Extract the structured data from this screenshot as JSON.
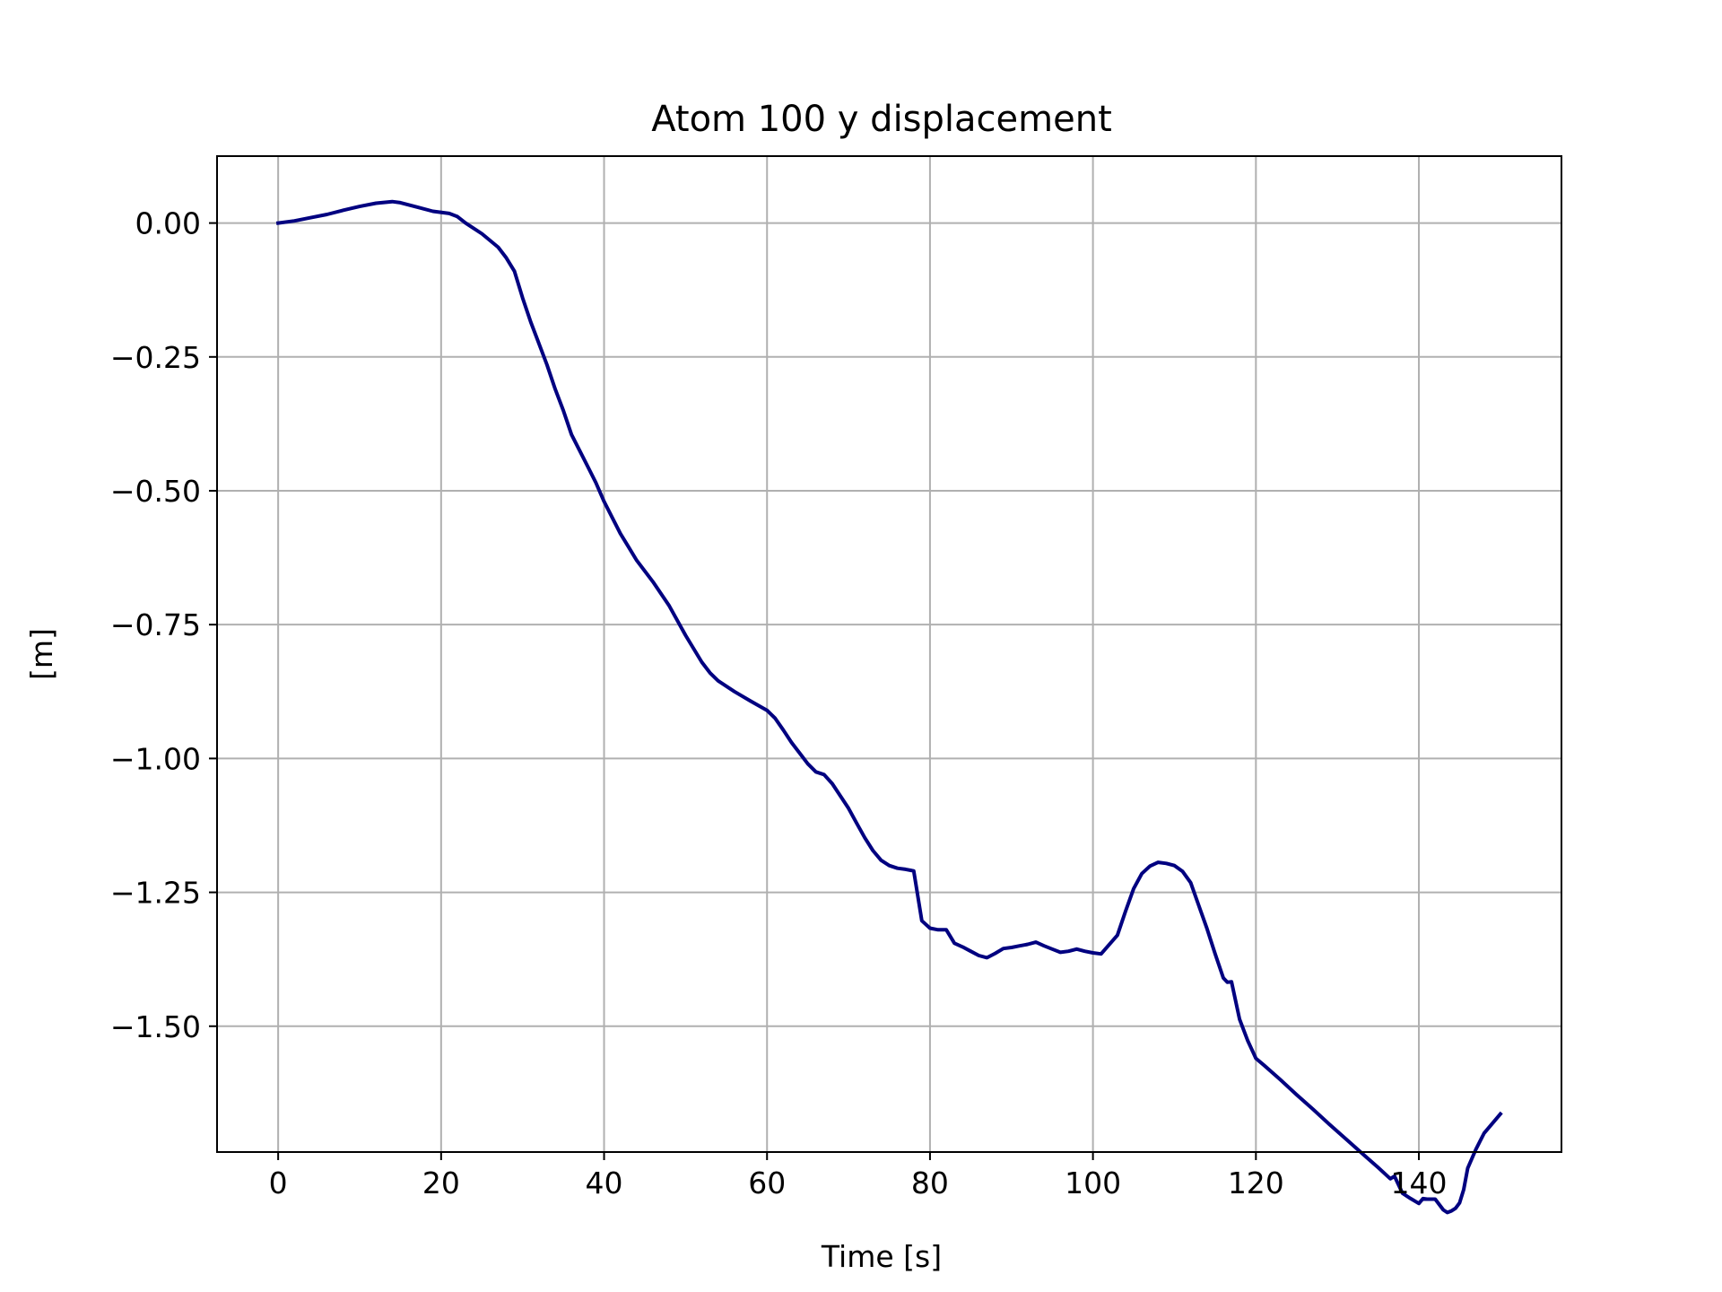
{
  "chart_data": {
    "type": "line",
    "title": "Atom 100 y displacement",
    "xlabel": "Time [s]",
    "ylabel": "[m]",
    "xlim": [
      -7.5,
      157.5
    ],
    "ylim": [
      -1.735,
      0.125
    ],
    "xticks": [
      0,
      20,
      40,
      60,
      80,
      100,
      120,
      140
    ],
    "xtick_labels": [
      "0",
      "20",
      "40",
      "60",
      "80",
      "100",
      "120",
      "140"
    ],
    "yticks": [
      0.0,
      -0.25,
      -0.5,
      -0.75,
      -1.0,
      -1.25,
      -1.5
    ],
    "ytick_labels": [
      "0.00",
      "−0.25",
      "−0.50",
      "−0.75",
      "−1.00",
      "−1.25",
      "−1.50"
    ],
    "grid": true,
    "line_color": "#000080",
    "grid_color": "#b0b0b0",
    "series": [
      {
        "x": [
          0,
          2,
          4,
          6,
          8,
          10,
          12,
          14,
          15,
          17,
          19,
          21,
          22,
          23,
          25,
          27,
          28,
          29,
          30,
          31,
          32,
          33,
          34,
          35,
          36,
          37,
          38,
          39,
          40,
          41,
          42,
          43,
          44,
          46,
          48,
          50,
          52,
          53,
          54,
          56,
          58,
          60,
          61,
          62,
          63,
          64,
          65,
          66,
          67,
          68,
          69,
          70,
          71,
          72,
          73,
          74,
          75,
          76,
          77,
          78,
          79,
          80,
          81,
          82,
          83,
          84,
          85,
          86,
          87,
          88,
          89,
          90,
          91,
          92,
          93,
          94,
          95,
          96,
          97,
          98,
          99,
          100,
          101,
          103,
          104,
          105,
          106,
          107,
          108,
          109,
          110,
          111,
          112,
          113,
          114,
          115,
          116,
          116.5,
          117,
          118,
          119,
          120,
          121,
          123,
          125,
          127,
          129,
          131,
          133,
          135,
          136.5,
          137,
          138,
          139,
          140,
          140.5,
          141,
          142,
          143,
          143.5,
          144,
          144.5,
          145,
          145.5,
          146,
          147,
          148,
          150
        ],
        "y": [
          0.0,
          0.004,
          0.01,
          0.016,
          0.024,
          0.031,
          0.037,
          0.04,
          0.038,
          0.03,
          0.022,
          0.018,
          0.012,
          0.0,
          -0.02,
          -0.045,
          -0.065,
          -0.09,
          -0.14,
          -0.185,
          -0.225,
          -0.265,
          -0.31,
          -0.35,
          -0.395,
          -0.425,
          -0.455,
          -0.485,
          -0.52,
          -0.55,
          -0.58,
          -0.605,
          -0.63,
          -0.67,
          -0.715,
          -0.77,
          -0.82,
          -0.84,
          -0.855,
          -0.875,
          -0.893,
          -0.91,
          -0.925,
          -0.947,
          -0.97,
          -0.99,
          -1.01,
          -1.025,
          -1.03,
          -1.047,
          -1.07,
          -1.093,
          -1.121,
          -1.148,
          -1.172,
          -1.19,
          -1.2,
          -1.205,
          -1.207,
          -1.21,
          -1.303,
          -1.317,
          -1.32,
          -1.32,
          -1.345,
          -1.352,
          -1.36,
          -1.368,
          -1.372,
          -1.364,
          -1.355,
          -1.353,
          -1.35,
          -1.347,
          -1.343,
          -1.35,
          -1.356,
          -1.362,
          -1.36,
          -1.356,
          -1.36,
          -1.363,
          -1.365,
          -1.33,
          -1.285,
          -1.243,
          -1.215,
          -1.201,
          -1.194,
          -1.196,
          -1.2,
          -1.211,
          -1.232,
          -1.275,
          -1.318,
          -1.365,
          -1.41,
          -1.418,
          -1.417,
          -1.487,
          -1.527,
          -1.56,
          -1.573,
          -1.6,
          -1.628,
          -1.655,
          -1.683,
          -1.71,
          -1.737,
          -1.764,
          -1.785,
          -1.78,
          -1.812,
          -1.822,
          -1.831,
          -1.822,
          -1.823,
          -1.823,
          -1.843,
          -1.848,
          -1.845,
          -1.84,
          -1.83,
          -1.805,
          -1.765,
          -1.73,
          -1.7,
          -1.664
        ]
      }
    ]
  }
}
